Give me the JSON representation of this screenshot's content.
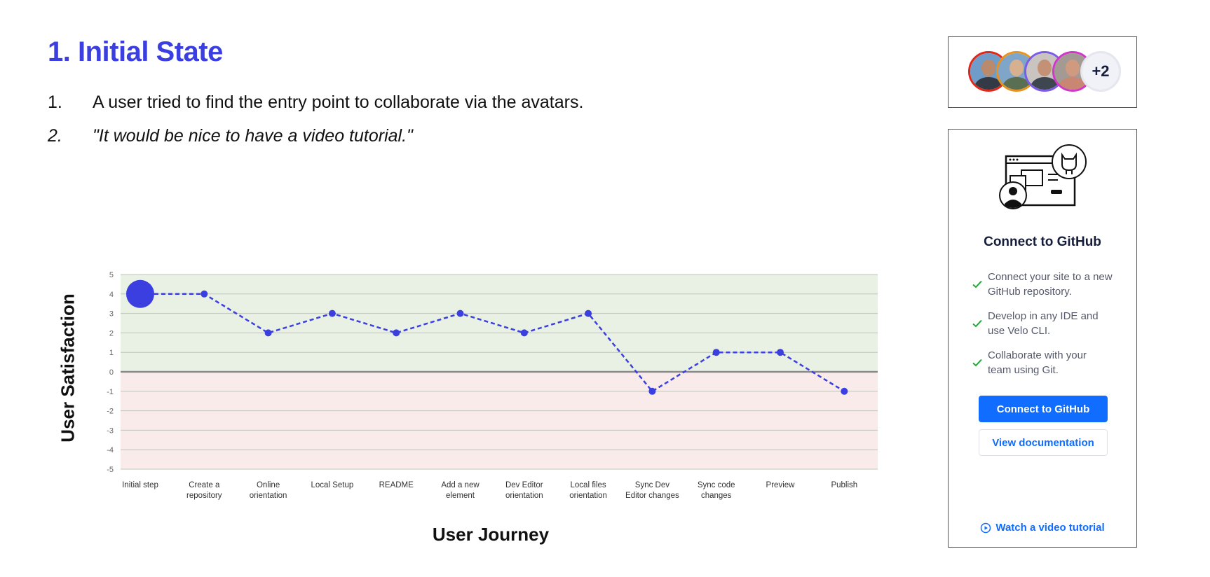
{
  "slide": {
    "title": "1. Initial State",
    "notes": [
      {
        "number": "1.",
        "text": "A user tried to find the entry point to collaborate via the avatars."
      },
      {
        "number": "2.",
        "text": "\"It would be nice to have a video tutorial.\""
      }
    ]
  },
  "chart_data": {
    "type": "line",
    "ylabel": "User Satisfaction",
    "xlabel": "User Journey",
    "categories": [
      "Initial step",
      "Create a repository",
      "Online orientation",
      "Local Setup",
      "README",
      "Add a new element",
      "Dev Editor orientation",
      "Local files orientation",
      "Sync Dev Editor changes",
      "Sync code changes",
      "Preview",
      "Publish"
    ],
    "category_lines": [
      [
        "Initial step"
      ],
      [
        "Create a",
        "repository"
      ],
      [
        "Online",
        "orientation"
      ],
      [
        "Local Setup"
      ],
      [
        "README"
      ],
      [
        "Add a new",
        "element"
      ],
      [
        "Dev Editor",
        "orientation"
      ],
      [
        "Local files",
        "orientation"
      ],
      [
        "Sync Dev",
        "Editor changes"
      ],
      [
        "Sync code",
        "changes"
      ],
      [
        "Preview"
      ],
      [
        "Publish"
      ]
    ],
    "values": [
      4,
      4,
      2,
      3,
      2,
      3,
      2,
      3,
      -1,
      1,
      1,
      -1
    ],
    "ylim": [
      -5,
      5
    ],
    "yticks": [
      5,
      4,
      3,
      2,
      1,
      0,
      -1,
      -2,
      -3,
      -4,
      -5
    ],
    "highlight_index": 0,
    "grid": true,
    "positive_band_color": "#e9f0e4",
    "negative_band_color": "#f8ebea",
    "line_color": "#3b3fe0",
    "line_style": "dashed"
  },
  "avatars": {
    "ring_colors": [
      "#e0271a",
      "#e8921f",
      "#7c5ce6",
      "#cf37c9"
    ],
    "more_label": "+2"
  },
  "github_panel": {
    "title": "Connect to GitHub",
    "features": [
      [
        "Connect your site to a new",
        "GitHub repository."
      ],
      [
        "Develop in any IDE and",
        "use Velo CLI."
      ],
      [
        "Collaborate with your",
        "team using Git."
      ]
    ],
    "primary_button": "Connect to GitHub",
    "secondary_button": "View documentation",
    "video_link": "Watch a video tutorial",
    "accent_color": "#116dff",
    "check_color": "#25a63b"
  }
}
